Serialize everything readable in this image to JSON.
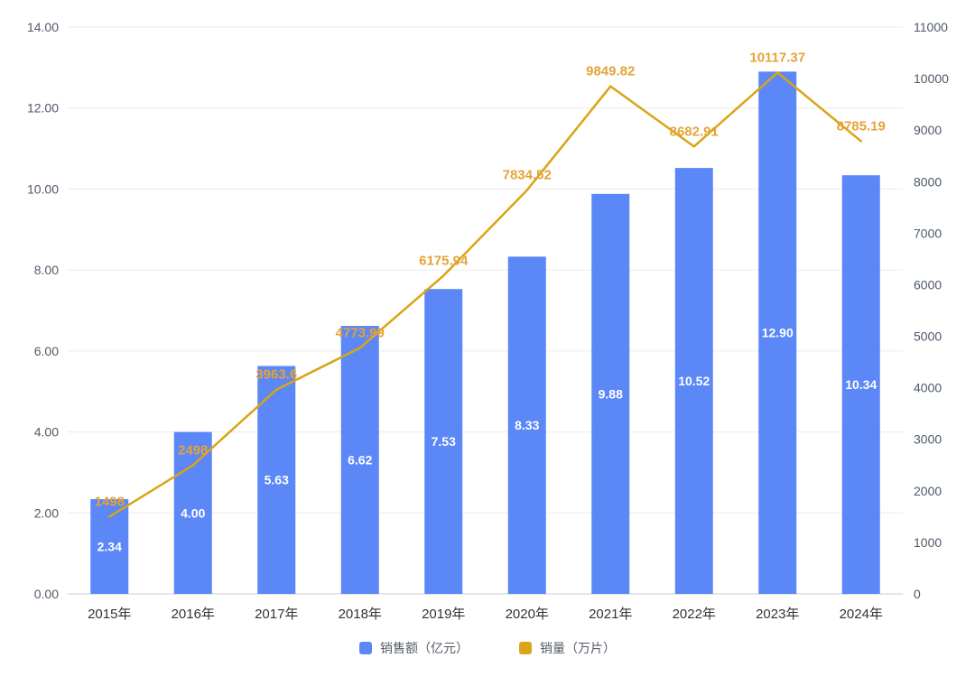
{
  "chart_data": {
    "type": "bar+line combo",
    "categories": [
      "2015年",
      "2016年",
      "2017年",
      "2018年",
      "2019年",
      "2020年",
      "2021年",
      "2022年",
      "2023年",
      "2024年"
    ],
    "series": [
      {
        "name": "销售额（亿元）",
        "type": "bar",
        "axis": "left",
        "color": "#5B87F7",
        "values": [
          2.34,
          4.0,
          5.63,
          6.62,
          7.53,
          8.33,
          9.88,
          10.52,
          12.9,
          10.34
        ],
        "labels": [
          "2.34",
          "4.00",
          "5.63",
          "6.62",
          "7.53",
          "8.33",
          "9.88",
          "10.52",
          "12.90",
          "10.34"
        ]
      },
      {
        "name": "销量（万片）",
        "type": "line",
        "axis": "right",
        "color": "#D9A514",
        "label_color": "#E5A337",
        "values": [
          1498,
          2498,
          3963.6,
          4773.99,
          6175.94,
          7834.52,
          9849.82,
          8682.91,
          10117.37,
          8785.19
        ],
        "labels": [
          "1498",
          "2498",
          "3963.6",
          "4773.99",
          "6175.94",
          "7834.52",
          "9849.82",
          "8682.91",
          "10117.37",
          "8785.19"
        ]
      }
    ],
    "left_axis": {
      "min": 0,
      "max": 14,
      "tick_values": [
        0,
        2,
        4,
        6,
        8,
        10,
        12,
        14
      ],
      "tick_labels": [
        "0.00",
        "2.00",
        "4.00",
        "6.00",
        "8.00",
        "10.00",
        "12.00",
        "14.00"
      ]
    },
    "right_axis": {
      "min": 0,
      "max": 11000,
      "tick_values": [
        0,
        1000,
        2000,
        3000,
        4000,
        5000,
        6000,
        7000,
        8000,
        9000,
        10000,
        11000
      ],
      "tick_labels": [
        "0",
        "1000",
        "2000",
        "3000",
        "4000",
        "5000",
        "6000",
        "7000",
        "8000",
        "9000",
        "10000",
        "11000"
      ]
    },
    "grid": "horizontal light gray lines at left-axis ticks",
    "legend_position": "bottom-center",
    "legend": [
      {
        "label": "销售额（亿元）",
        "color": "#5B87F7"
      },
      {
        "label": "销量（万片）",
        "color": "#D9A514"
      }
    ]
  }
}
